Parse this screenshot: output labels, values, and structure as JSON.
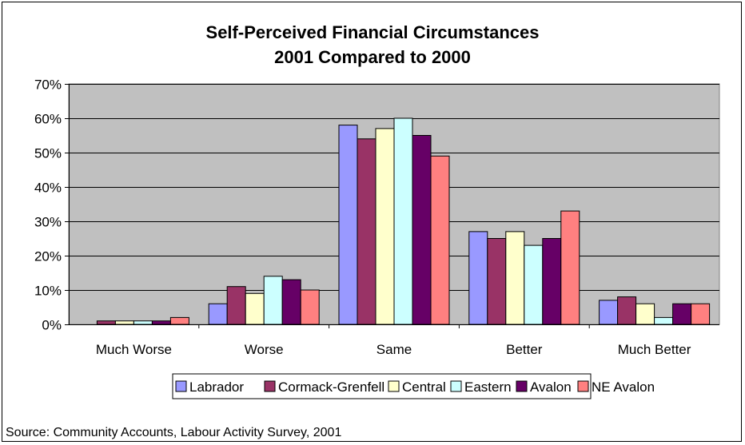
{
  "chart_data": {
    "type": "bar",
    "title": [
      "Self-Perceived Financial Circumstances",
      "2001 Compared to 2000"
    ],
    "categories": [
      "Much Worse",
      "Worse",
      "Same",
      "Better",
      "Much Better"
    ],
    "ylim": [
      0,
      70
    ],
    "y_ticks": [
      "0%",
      "10%",
      "20%",
      "30%",
      "40%",
      "50%",
      "60%",
      "70%"
    ],
    "y_unit": "%",
    "grid": "horizontal",
    "legend_position": "bottom",
    "series": [
      {
        "name": "Labrador",
        "color": "#9999FF",
        "values": [
          0,
          6,
          58,
          27,
          7
        ]
      },
      {
        "name": "Cormack-Grenfell",
        "color": "#993366",
        "values": [
          1,
          11,
          54,
          25,
          8
        ]
      },
      {
        "name": "Central",
        "color": "#FFFFCC",
        "values": [
          1,
          9,
          57,
          27,
          6
        ]
      },
      {
        "name": "Eastern",
        "color": "#CCFFFF",
        "values": [
          1,
          14,
          60,
          23,
          2
        ]
      },
      {
        "name": "Avalon",
        "color": "#660066",
        "values": [
          1,
          13,
          55,
          25,
          6
        ]
      },
      {
        "name": "NE Avalon",
        "color": "#FF8080",
        "values": [
          2,
          10,
          49,
          33,
          6
        ]
      }
    ],
    "plot_background": "#C0C0C0"
  },
  "source_note": "Source: Community Accounts, Labour Activity Survey, 2001"
}
